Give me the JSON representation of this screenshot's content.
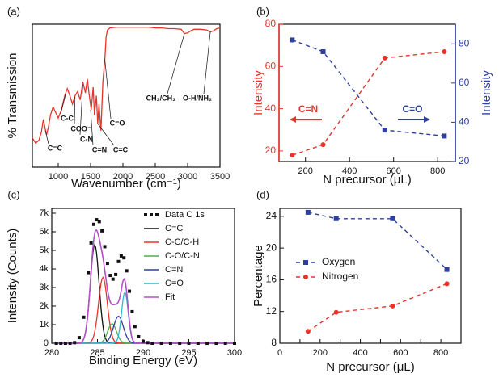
{
  "chart_data": [
    {
      "panel": "(a)",
      "type": "line",
      "xlabel": "Wavenumber (cm⁻¹)",
      "ylabel": "% Transmission",
      "xlim": [
        600,
        3500
      ],
      "xticks": [
        "1000",
        "1500",
        "2000",
        "2500",
        "3000",
        "3500"
      ],
      "line_color": "#e8332a",
      "annotations": [
        "C=C",
        "C-C",
        "COO⁻",
        "C-N",
        "C=N",
        "C=C",
        "C=O",
        "CH₂/CH₃",
        "O-H/NH₂"
      ],
      "series": [
        {
          "x": [
            600,
            650,
            700,
            740,
            770,
            800,
            820,
            850,
            880,
            920,
            960,
            1000,
            1050,
            1100,
            1140,
            1180,
            1220,
            1260,
            1300,
            1340,
            1380,
            1420,
            1450,
            1480,
            1510,
            1540,
            1560,
            1590,
            1610,
            1630,
            1660,
            1690,
            1720,
            1740,
            1760,
            1800,
            1900,
            2000,
            2100,
            2200,
            2300,
            2400,
            2500,
            2600,
            2700,
            2800,
            2900,
            2950,
            3000,
            3050,
            3100,
            3200,
            3300,
            3350,
            3400,
            3450,
            3500
          ],
          "y": [
            0.2,
            0.16,
            0.18,
            0.24,
            0.33,
            0.26,
            0.22,
            0.28,
            0.36,
            0.42,
            0.38,
            0.34,
            0.4,
            0.5,
            0.55,
            0.5,
            0.44,
            0.5,
            0.53,
            0.47,
            0.6,
            0.52,
            0.62,
            0.5,
            0.4,
            0.56,
            0.36,
            0.5,
            0.3,
            0.44,
            0.25,
            0.6,
            0.76,
            0.92,
            0.97,
            0.985,
            0.99,
            0.99,
            0.99,
            0.99,
            0.99,
            0.99,
            0.985,
            0.985,
            0.98,
            0.98,
            0.975,
            0.945,
            0.95,
            0.965,
            0.975,
            0.975,
            0.97,
            0.955,
            0.965,
            0.98,
            0.985
          ]
        }
      ]
    },
    {
      "panel": "(b)",
      "type": "line",
      "xlabel": "N precursor (μL)",
      "ylabel_left": "Intensity",
      "ylabel_right": "Intensity",
      "xlim": [
        80,
        880
      ],
      "ylim_left": [
        15,
        80
      ],
      "ylim_right": [
        20,
        90
      ],
      "xticks": [
        "200",
        "400",
        "600",
        "800"
      ],
      "yticks_left": [
        "20",
        "40",
        "60",
        "80"
      ],
      "yticks_right": [
        "20",
        "40",
        "60",
        "80"
      ],
      "series": [
        {
          "name": "C=N",
          "axis": "left",
          "color": "#e8332a",
          "x": [
            140,
            280,
            560,
            830
          ],
          "y": [
            18,
            23,
            64,
            67
          ]
        },
        {
          "name": "C=O",
          "axis": "right",
          "color": "#2e3f9c",
          "x": [
            140,
            280,
            560,
            830
          ],
          "y": [
            82,
            76,
            36,
            33
          ]
        }
      ]
    },
    {
      "panel": "(c)",
      "type": "line",
      "xlabel": "Binding Energy (eV)",
      "ylabel": "Intensity (Counts)",
      "xlim": [
        280,
        300
      ],
      "ylim": [
        0,
        7000
      ],
      "xticks": [
        "280",
        "285",
        "290",
        "295",
        "300"
      ],
      "yticks": [
        "0",
        "1k",
        "2k",
        "3k",
        "4k",
        "5k",
        "6k",
        "7k"
      ],
      "legend": [
        "Data C 1s",
        "C=C",
        "C-C/C-H",
        "C-O/C-N",
        "C=N",
        "C=O",
        "Fit"
      ],
      "data_points": {
        "name": "Data C 1s",
        "x": [
          280.5,
          281.0,
          281.5,
          282.0,
          282.5,
          283.0,
          283.5,
          284.0,
          284.3,
          284.6,
          284.9,
          285.2,
          285.5,
          285.8,
          286.1,
          286.4,
          286.7,
          287.0,
          287.3,
          287.6,
          287.9,
          288.2,
          288.5,
          288.8,
          289.1,
          289.5,
          290.0,
          290.5,
          291.0,
          292.0,
          293.0,
          294.0,
          295.0,
          296.0,
          297.0,
          298.0,
          299.0,
          300.0
        ],
        "y": [
          0,
          0,
          0,
          0,
          30,
          300,
          1400,
          3800,
          5400,
          6400,
          6650,
          6550,
          6050,
          5200,
          4300,
          3650,
          3450,
          3700,
          4400,
          4700,
          4600,
          3900,
          2800,
          1700,
          900,
          350,
          100,
          30,
          0,
          0,
          0,
          0,
          0,
          0,
          0,
          0,
          0,
          0
        ]
      },
      "components": [
        {
          "name": "C=C",
          "color": "#111111",
          "center": 284.7,
          "height": 5300,
          "width": 0.8
        },
        {
          "name": "C-C/C-H",
          "color": "#e8332a",
          "center": 285.6,
          "height": 3550,
          "width": 0.8
        },
        {
          "name": "C-O/C-N",
          "color": "#4caf50",
          "center": 286.6,
          "height": 1050,
          "width": 0.8
        },
        {
          "name": "C=N",
          "color": "#2e3f9c",
          "center": 287.3,
          "height": 1450,
          "width": 0.9
        },
        {
          "name": "C=O",
          "color": "#2bb8d0",
          "center": 288.0,
          "height": 2750,
          "width": 0.6
        }
      ],
      "fit_color": "#b450c8",
      "data_color": "#111111"
    },
    {
      "panel": "(d)",
      "type": "line",
      "xlabel": "N precursor (μL)",
      "ylabel": "Percentage",
      "xlim": [
        0,
        900
      ],
      "ylim": [
        8,
        25
      ],
      "xticks": [
        "0",
        "100",
        "200",
        "300",
        "400",
        "500",
        "600",
        "700",
        "800",
        "900"
      ],
      "yticks": [
        "8",
        "12",
        "16",
        "20",
        "24"
      ],
      "legend": [
        "Oxygen",
        "Nitrogen"
      ],
      "series": [
        {
          "name": "Oxygen",
          "color": "#2e3f9c",
          "x": [
            140,
            280,
            560,
            830
          ],
          "y": [
            24.5,
            23.7,
            23.7,
            17.3
          ]
        },
        {
          "name": "Nitrogen",
          "color": "#e8332a",
          "x": [
            140,
            280,
            560,
            830
          ],
          "y": [
            9.5,
            11.9,
            12.7,
            15.5
          ]
        }
      ]
    }
  ]
}
